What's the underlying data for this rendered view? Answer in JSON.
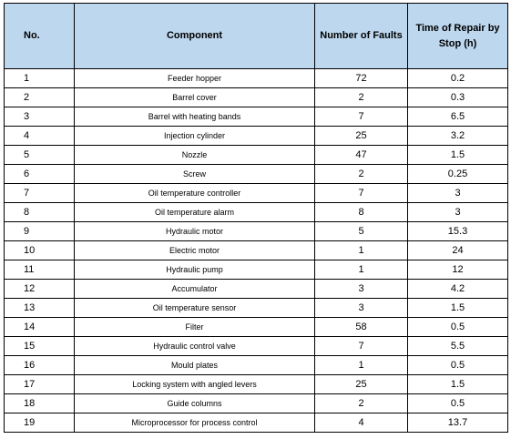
{
  "headers": {
    "no": "No.",
    "component": "Component",
    "faults": "Number of Faults",
    "time": "Time of Repair by Stop (h)"
  },
  "rows": [
    {
      "no": "1",
      "component": "Feeder hopper",
      "faults": "72",
      "time": "0.2"
    },
    {
      "no": "2",
      "component": "Barrel cover",
      "faults": "2",
      "time": "0.3"
    },
    {
      "no": "3",
      "component": "Barrel with heating bands",
      "faults": "7",
      "time": "6.5"
    },
    {
      "no": "4",
      "component": "Injection cylinder",
      "faults": "25",
      "time": "3.2"
    },
    {
      "no": "5",
      "component": "Nozzle",
      "faults": "47",
      "time": "1.5"
    },
    {
      "no": "6",
      "component": "Screw",
      "faults": "2",
      "time": "0.25"
    },
    {
      "no": "7",
      "component": "Oil temperature controller",
      "faults": "7",
      "time": "3"
    },
    {
      "no": "8",
      "component": "Oil temperature alarm",
      "faults": "8",
      "time": "3"
    },
    {
      "no": "9",
      "component": "Hydraulic motor",
      "faults": "5",
      "time": "15.3"
    },
    {
      "no": "10",
      "component": "Electric motor",
      "faults": "1",
      "time": "24"
    },
    {
      "no": "11",
      "component": "Hydraulic pump",
      "faults": "1",
      "time": "12"
    },
    {
      "no": "12",
      "component": "Accumulator",
      "faults": "3",
      "time": "4.2"
    },
    {
      "no": "13",
      "component": "Oil temperature sensor",
      "faults": "3",
      "time": "1.5"
    },
    {
      "no": "14",
      "component": "Filter",
      "faults": "58",
      "time": "0.5"
    },
    {
      "no": "15",
      "component": "Hydraulic control valve",
      "faults": "7",
      "time": "5.5"
    },
    {
      "no": "16",
      "component": "Mould plates",
      "faults": "1",
      "time": "0.5"
    },
    {
      "no": "17",
      "component": "Locking system with angled levers",
      "faults": "25",
      "time": "1.5"
    },
    {
      "no": "18",
      "component": "Guide columns",
      "faults": "2",
      "time": "0.5"
    },
    {
      "no": "19",
      "component": "Microprocessor for process control",
      "faults": "4",
      "time": "13.7"
    }
  ],
  "colors": {
    "header_bg": "#bdd7ee",
    "border": "#000000"
  }
}
